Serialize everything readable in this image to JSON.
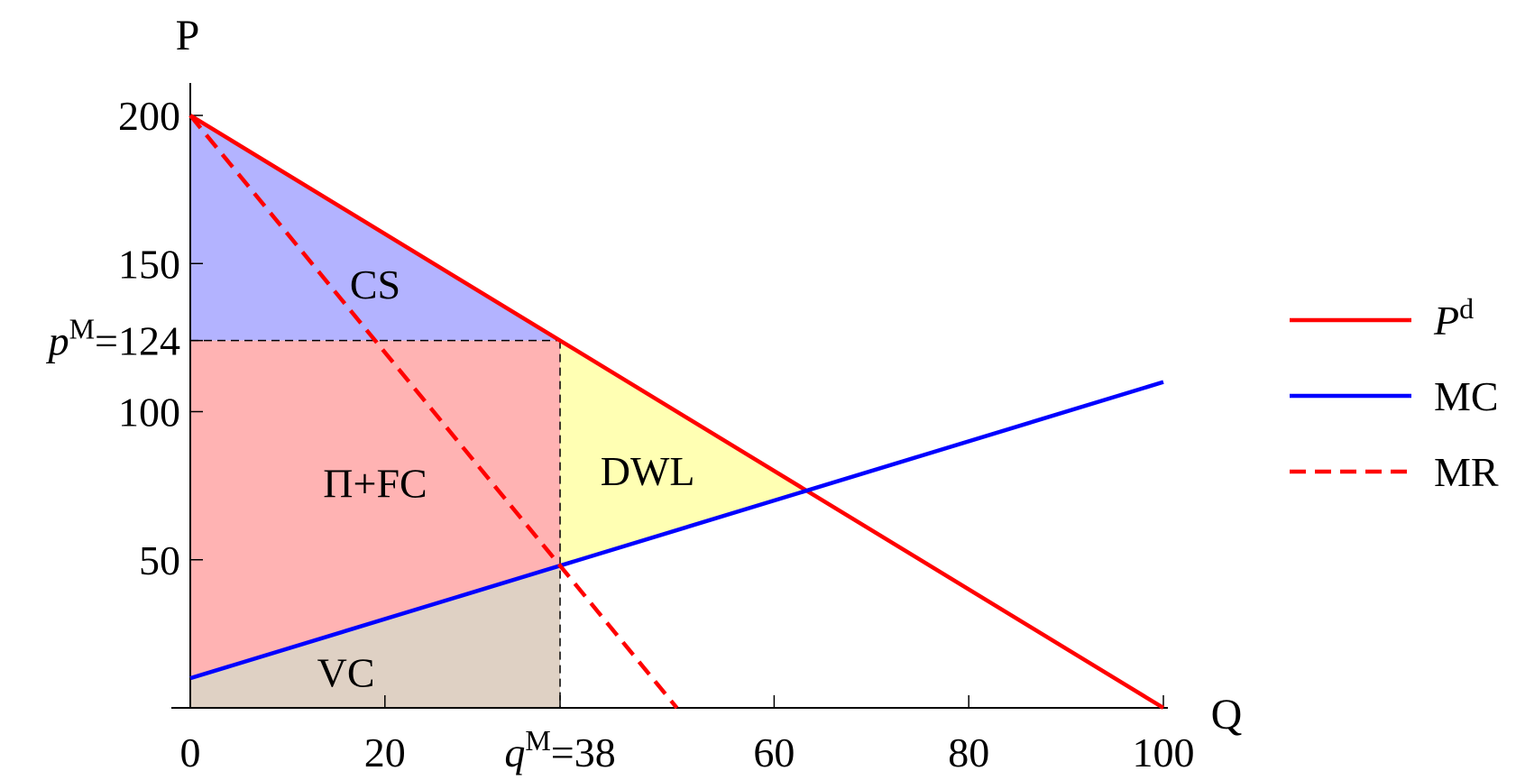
{
  "chart_data": {
    "type": "line",
    "xlabel": "Q",
    "ylabel": "P",
    "xlim": [
      0,
      100
    ],
    "ylim": [
      0,
      200
    ],
    "x_ticks": [
      0,
      20,
      60,
      80,
      100
    ],
    "x_tick_labels": [
      "0",
      "20",
      "60",
      "80",
      "100"
    ],
    "y_ticks": [
      50,
      100,
      150,
      200
    ],
    "y_tick_labels": [
      "50",
      "100",
      "150",
      "200"
    ],
    "special_x": {
      "value": 38,
      "label_var": "q",
      "label_sup": "M",
      "label_value": "=38"
    },
    "special_y": {
      "value": 124,
      "label_var": "p",
      "label_sup": "M",
      "label_value": "=124"
    },
    "series": [
      {
        "name_main": "P",
        "name_sup": "d",
        "color": "#ff0000",
        "dash": false,
        "points": [
          [
            0,
            200
          ],
          [
            100,
            0
          ]
        ]
      },
      {
        "name_main": "MC",
        "name_sup": "",
        "color": "#0000ff",
        "dash": false,
        "points": [
          [
            0,
            10
          ],
          [
            100,
            110
          ]
        ]
      },
      {
        "name_main": "MR",
        "name_sup": "",
        "color": "#ff0000",
        "dash": true,
        "points": [
          [
            0,
            200
          ],
          [
            50,
            0
          ]
        ]
      }
    ],
    "regions": [
      {
        "label": "CS",
        "color": "#b3b3ff",
        "label_at": [
          19,
          143
        ],
        "polygon": [
          [
            0,
            200
          ],
          [
            0,
            124
          ],
          [
            38,
            124
          ]
        ]
      },
      {
        "label": "Π+FC",
        "color": "#ffb3b3",
        "label_at": [
          19,
          76
        ],
        "polygon": [
          [
            0,
            124
          ],
          [
            38,
            124
          ],
          [
            38,
            48
          ],
          [
            0,
            10
          ]
        ]
      },
      {
        "label": "DWL",
        "color": "#ffffb3",
        "label_at": [
          47,
          80
        ],
        "polygon": [
          [
            38,
            124
          ],
          [
            63.33,
            73.33
          ],
          [
            38,
            48
          ]
        ]
      },
      {
        "label": "VC",
        "color": "#dfd1c4",
        "label_at": [
          16,
          12
        ],
        "polygon": [
          [
            0,
            10
          ],
          [
            38,
            48
          ],
          [
            38,
            0
          ],
          [
            0,
            0
          ]
        ]
      }
    ],
    "legend_position": "right",
    "grid": false
  }
}
